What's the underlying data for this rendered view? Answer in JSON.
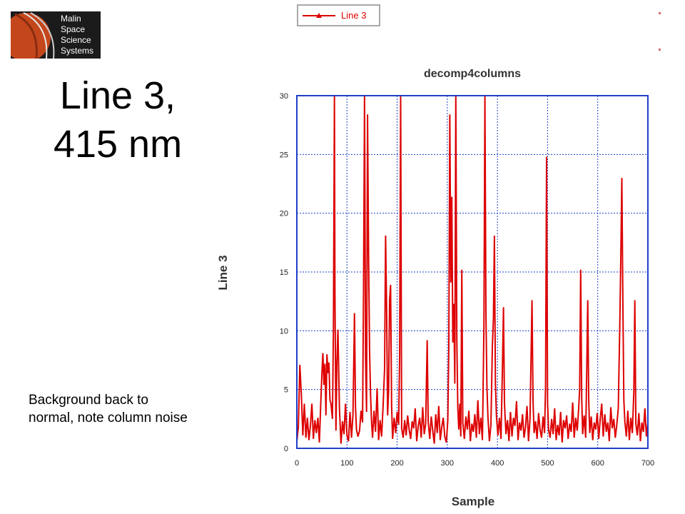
{
  "logo": {
    "lines": [
      "Malin",
      "Space",
      "Science",
      "Systems"
    ]
  },
  "slide": {
    "title_line1": "Line 3,",
    "title_line2": "415 nm",
    "note_line1": "Background back to",
    "note_line2": "normal, note column noise"
  },
  "legend": {
    "label": "Line 3",
    "color": "#dd0000"
  },
  "chart_data": {
    "type": "line",
    "title": "decomp4columns",
    "xlabel": "Sample",
    "ylabel": "Line 3",
    "xlim": [
      0,
      700
    ],
    "ylim": [
      0,
      30
    ],
    "xticks": [
      0,
      100,
      200,
      300,
      400,
      500,
      600,
      700
    ],
    "yticks": [
      0,
      5,
      10,
      15,
      20,
      25,
      30
    ],
    "grid": true,
    "legend_position": "top-left, outside plot",
    "series": [
      {
        "name": "Line 3",
        "color": "#dd0000",
        "points": [
          [
            0,
            0.6
          ],
          [
            3,
            1.8
          ],
          [
            6,
            7.1
          ],
          [
            9,
            4.6
          ],
          [
            12,
            1.1
          ],
          [
            15,
            3.8
          ],
          [
            18,
            0.9
          ],
          [
            21,
            2.6
          ],
          [
            24,
            0.7
          ],
          [
            27,
            1.9
          ],
          [
            30,
            3.8
          ],
          [
            33,
            0.8
          ],
          [
            36,
            2.4
          ],
          [
            39,
            1.3
          ],
          [
            42,
            2.6
          ],
          [
            45,
            0.5
          ],
          [
            48,
            4.1
          ],
          [
            50,
            6.3
          ],
          [
            52,
            8.1
          ],
          [
            54,
            5.4
          ],
          [
            56,
            7.2
          ],
          [
            58,
            2.8
          ],
          [
            60,
            8.0
          ],
          [
            62,
            6.4
          ],
          [
            64,
            7.3
          ],
          [
            66,
            4.1
          ],
          [
            68,
            3.8
          ],
          [
            71,
            2.5
          ],
          [
            73,
            10.2
          ],
          [
            75,
            30.0
          ],
          [
            76,
            13.2
          ],
          [
            78,
            1.5
          ],
          [
            80,
            7.4
          ],
          [
            82,
            10.1
          ],
          [
            85,
            3.4
          ],
          [
            88,
            0.4
          ],
          [
            91,
            2.3
          ],
          [
            94,
            1.2
          ],
          [
            97,
            3.8
          ],
          [
            100,
            1.1
          ],
          [
            103,
            0.6
          ],
          [
            106,
            3.1
          ],
          [
            109,
            0.9
          ],
          [
            112,
            2.9
          ],
          [
            115,
            11.5
          ],
          [
            117,
            3.5
          ],
          [
            119,
            1.6
          ],
          [
            122,
            1.0
          ],
          [
            125,
            1.5
          ],
          [
            128,
            3.2
          ],
          [
            131,
            2.2
          ],
          [
            133,
            13.6
          ],
          [
            135,
            30.0
          ],
          [
            137,
            7.8
          ],
          [
            139,
            3.1
          ],
          [
            141,
            28.4
          ],
          [
            143,
            16.9
          ],
          [
            145,
            8.4
          ],
          [
            147,
            4.6
          ],
          [
            149,
            2.3
          ],
          [
            151,
            0.9
          ],
          [
            154,
            3.2
          ],
          [
            157,
            1.4
          ],
          [
            160,
            5.1
          ],
          [
            163,
            0.7
          ],
          [
            166,
            2.4
          ],
          [
            169,
            1.0
          ],
          [
            172,
            3.6
          ],
          [
            175,
            6.8
          ],
          [
            177,
            18.1
          ],
          [
            179,
            12.0
          ],
          [
            181,
            2.8
          ],
          [
            183,
            4.9
          ],
          [
            185,
            12.6
          ],
          [
            187,
            13.9
          ],
          [
            189,
            3.7
          ],
          [
            191,
            0.8
          ],
          [
            194,
            2.6
          ],
          [
            197,
            1.3
          ],
          [
            200,
            3.1
          ],
          [
            203,
            2.0
          ],
          [
            205,
            8.1
          ],
          [
            207,
            30.0
          ],
          [
            209,
            1.7
          ],
          [
            212,
            0.9
          ],
          [
            215,
            2.4
          ],
          [
            218,
            1.1
          ],
          [
            221,
            2.8
          ],
          [
            224,
            1.6
          ],
          [
            227,
            0.8
          ],
          [
            230,
            2.3
          ],
          [
            233,
            1.7
          ],
          [
            236,
            3.4
          ],
          [
            239,
            0.6
          ],
          [
            242,
            1.9
          ],
          [
            245,
            2.6
          ],
          [
            248,
            0.9
          ],
          [
            251,
            3.5
          ],
          [
            254,
            1.2
          ],
          [
            257,
            2.1
          ],
          [
            260,
            9.2
          ],
          [
            262,
            2.3
          ],
          [
            265,
            0.8
          ],
          [
            268,
            2.7
          ],
          [
            271,
            1.5
          ],
          [
            274,
            0.4
          ],
          [
            277,
            2.9
          ],
          [
            280,
            1.3
          ],
          [
            283,
            3.6
          ],
          [
            286,
            0.7
          ],
          [
            289,
            1.8
          ],
          [
            292,
            2.6
          ],
          [
            295,
            1.0
          ],
          [
            298,
            0.5
          ],
          [
            301,
            2.4
          ],
          [
            303,
            8.7
          ],
          [
            305,
            28.4
          ],
          [
            307,
            14.1
          ],
          [
            309,
            21.4
          ],
          [
            311,
            9.0
          ],
          [
            313,
            12.3
          ],
          [
            315,
            5.5
          ],
          [
            317,
            30.0
          ],
          [
            319,
            9.4
          ],
          [
            321,
            3.4
          ],
          [
            323,
            1.6
          ],
          [
            325,
            3.8
          ],
          [
            327,
            1.0
          ],
          [
            329,
            15.2
          ],
          [
            331,
            2.2
          ],
          [
            334,
            0.8
          ],
          [
            337,
            2.7
          ],
          [
            340,
            1.6
          ],
          [
            343,
            3.2
          ],
          [
            346,
            0.6
          ],
          [
            349,
            2.1
          ],
          [
            352,
            1.4
          ],
          [
            355,
            2.9
          ],
          [
            358,
            0.9
          ],
          [
            361,
            4.1
          ],
          [
            364,
            1.2
          ],
          [
            367,
            2.6
          ],
          [
            370,
            0.7
          ],
          [
            373,
            10.4
          ],
          [
            375,
            30.0
          ],
          [
            377,
            11.6
          ],
          [
            379,
            5.3
          ],
          [
            381,
            2.7
          ],
          [
            384,
            0.6
          ],
          [
            387,
            2.0
          ],
          [
            390,
            8.8
          ],
          [
            392,
            11.0
          ],
          [
            394,
            18.1
          ],
          [
            396,
            5.6
          ],
          [
            398,
            2.8
          ],
          [
            401,
            1.1
          ],
          [
            404,
            2.6
          ],
          [
            407,
            0.8
          ],
          [
            410,
            7.0
          ],
          [
            412,
            12.0
          ],
          [
            414,
            3.8
          ],
          [
            417,
            1.2
          ],
          [
            420,
            2.4
          ],
          [
            423,
            0.6
          ],
          [
            426,
            3.1
          ],
          [
            429,
            1.0
          ],
          [
            432,
            2.6
          ],
          [
            435,
            1.9
          ],
          [
            438,
            4.0
          ],
          [
            441,
            0.7
          ],
          [
            444,
            2.2
          ],
          [
            447,
            1.5
          ],
          [
            450,
            2.9
          ],
          [
            453,
            0.9
          ],
          [
            456,
            1.8
          ],
          [
            459,
            3.6
          ],
          [
            462,
            0.6
          ],
          [
            465,
            2.5
          ],
          [
            467,
            7.5
          ],
          [
            469,
            12.6
          ],
          [
            471,
            4.1
          ],
          [
            473,
            1.3
          ],
          [
            476,
            2.3
          ],
          [
            479,
            0.8
          ],
          [
            482,
            3.0
          ],
          [
            485,
            1.6
          ],
          [
            488,
            0.9
          ],
          [
            491,
            2.7
          ],
          [
            494,
            1.3
          ],
          [
            496,
            5.4
          ],
          [
            498,
            24.8
          ],
          [
            500,
            3.8
          ],
          [
            502,
            1.6
          ],
          [
            505,
            0.9
          ],
          [
            508,
            2.5
          ],
          [
            511,
            1.2
          ],
          [
            514,
            3.4
          ],
          [
            517,
            0.7
          ],
          [
            520,
            2.0
          ],
          [
            523,
            1.1
          ],
          [
            526,
            3.1
          ],
          [
            529,
            0.5
          ],
          [
            532,
            2.4
          ],
          [
            535,
            1.7
          ],
          [
            538,
            2.8
          ],
          [
            541,
            0.8
          ],
          [
            544,
            2.1
          ],
          [
            547,
            1.4
          ],
          [
            550,
            3.9
          ],
          [
            553,
            0.9
          ],
          [
            556,
            2.6
          ],
          [
            559,
            1.5
          ],
          [
            562,
            3.4
          ],
          [
            564,
            5.1
          ],
          [
            566,
            15.2
          ],
          [
            568,
            4.4
          ],
          [
            570,
            1.2
          ],
          [
            573,
            2.8
          ],
          [
            576,
            0.9
          ],
          [
            578,
            6.6
          ],
          [
            580,
            12.6
          ],
          [
            582,
            4.0
          ],
          [
            584,
            1.3
          ],
          [
            587,
            2.7
          ],
          [
            590,
            0.7
          ],
          [
            593,
            2.2
          ],
          [
            596,
            1.6
          ],
          [
            599,
            3.0
          ],
          [
            602,
            0.8
          ],
          [
            605,
            2.5
          ],
          [
            608,
            3.8
          ],
          [
            611,
            1.0
          ],
          [
            614,
            2.9
          ],
          [
            617,
            1.4
          ],
          [
            620,
            2.2
          ],
          [
            623,
            0.6
          ],
          [
            626,
            3.5
          ],
          [
            629,
            1.7
          ],
          [
            632,
            2.5
          ],
          [
            635,
            0.9
          ],
          [
            638,
            2.0
          ],
          [
            641,
            3.4
          ],
          [
            644,
            10.4
          ],
          [
            646,
            16.1
          ],
          [
            648,
            23.0
          ],
          [
            650,
            12.6
          ],
          [
            652,
            4.1
          ],
          [
            654,
            2.3
          ],
          [
            657,
            1.0
          ],
          [
            660,
            3.2
          ],
          [
            663,
            0.7
          ],
          [
            666,
            2.6
          ],
          [
            669,
            1.3
          ],
          [
            672,
            4.8
          ],
          [
            674,
            12.6
          ],
          [
            676,
            2.1
          ],
          [
            679,
            1.1
          ],
          [
            682,
            3.0
          ],
          [
            685,
            0.6
          ],
          [
            688,
            2.2
          ],
          [
            691,
            1.4
          ],
          [
            694,
            3.4
          ],
          [
            697,
            1.0
          ],
          [
            700,
            2.2
          ]
        ]
      }
    ]
  }
}
